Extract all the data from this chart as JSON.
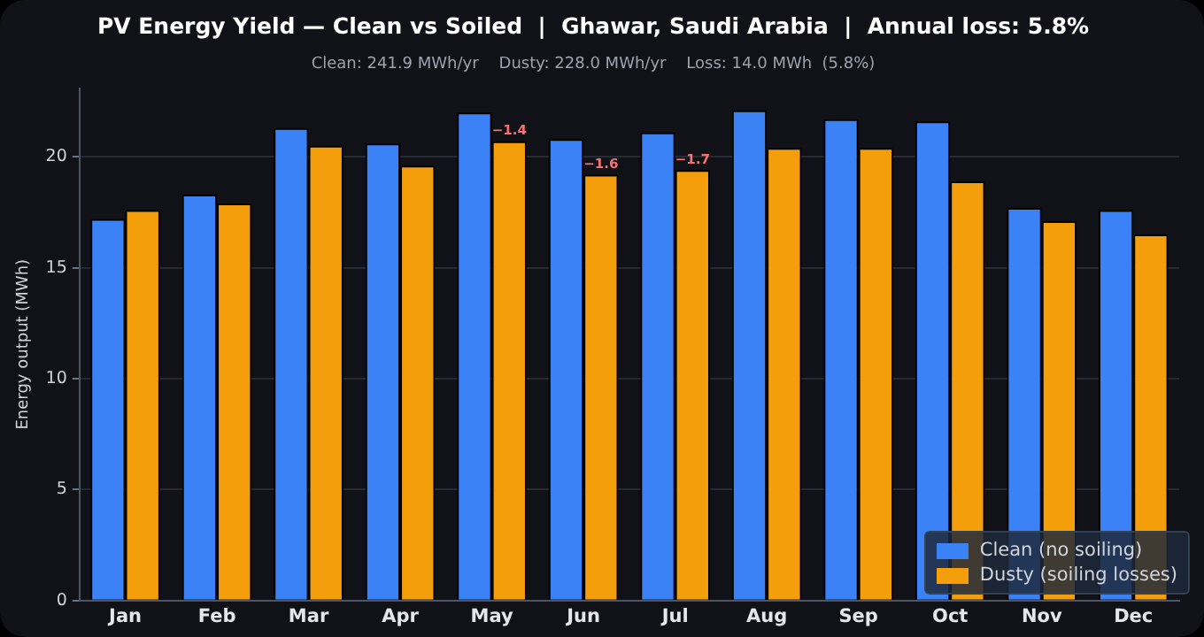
{
  "chart_data": {
    "type": "bar",
    "title": "PV Energy Yield — Clean vs Soiled  |  Ghawar, Saudi Arabia  |  Annual loss: 5.8%",
    "subtitle": "Clean: 241.9 MWh/yr    Dusty: 228.0 MWh/yr    Loss: 14.0 MWh  (5.8%)",
    "ylabel": "Energy output (MWh)",
    "categories": [
      "Jan",
      "Feb",
      "Mar",
      "Apr",
      "May",
      "Jun",
      "Jul",
      "Aug",
      "Sep",
      "Oct",
      "Nov",
      "Dec"
    ],
    "series": [
      {
        "name": "Clean (no soiling)",
        "color": "#3b82f6",
        "values": [
          17.2,
          18.3,
          21.3,
          20.6,
          22.0,
          20.8,
          21.1,
          22.1,
          21.7,
          21.6,
          17.7,
          17.6
        ]
      },
      {
        "name": "Dusty (soiling losses)",
        "color": "#f59e0b",
        "values": [
          17.6,
          17.9,
          20.5,
          19.6,
          20.7,
          19.2,
          19.4,
          20.4,
          20.4,
          18.9,
          17.1,
          16.5
        ]
      }
    ],
    "annotations": [
      {
        "text": "−1.4",
        "x": "May",
        "y": 20.7
      },
      {
        "text": "−1.6",
        "x": "Jun",
        "y": 19.2
      },
      {
        "text": "−1.7",
        "x": "Jul",
        "y": 19.4
      }
    ],
    "ylim": [
      0,
      23.1
    ],
    "yticks": [
      0,
      5,
      10,
      15,
      20
    ],
    "grid": "y",
    "legend": "bottom right"
  }
}
